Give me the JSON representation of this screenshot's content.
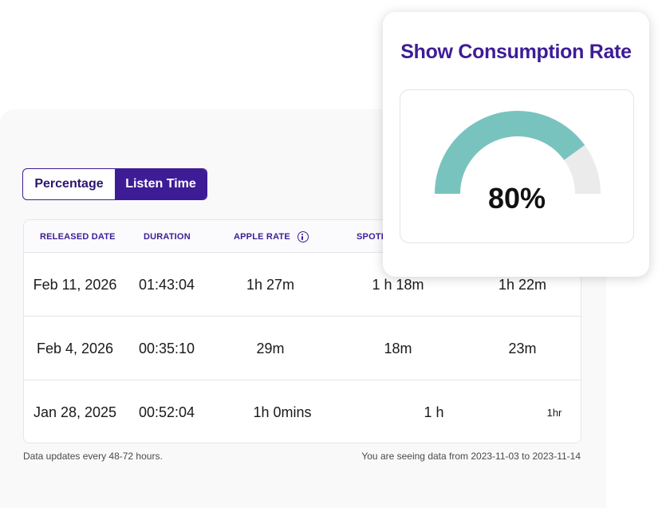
{
  "toggle": {
    "percentage_label": "Percentage",
    "listen_time_label": "Listen Time",
    "active": "listen_time"
  },
  "table": {
    "headers": {
      "released_date": "RELEASED DATE",
      "duration": "DURATION",
      "apple_rate": "APPLE RATE",
      "spotify_partial": "SPOTI"
    },
    "rows": [
      {
        "released_date": "Feb 11, 2026",
        "duration": "01:43:04",
        "apple_rate": "1h 27m",
        "spotify_rate": "1 h 18m",
        "col5": "1h 22m"
      },
      {
        "released_date": "Feb 4, 2026",
        "duration": "00:35:10",
        "apple_rate": "29m",
        "spotify_rate": "18m",
        "col5": "23m"
      },
      {
        "released_date": "Jan 28, 2025",
        "duration": "00:52:04",
        "apple_rate": "1h 0mins",
        "spotify_rate": "1 h",
        "col5": "1hr"
      }
    ]
  },
  "footer": {
    "update_note": "Data updates every 48-72 hours.",
    "range_note": "You are seeing data from 2023-11-03 to 2023-11-14"
  },
  "gauge": {
    "title": "Show Consumption Rate",
    "value": 80,
    "value_label": "80%",
    "fill_color": "#79c3bf",
    "track_color": "#ebebeb"
  },
  "colors": {
    "brand": "#3e1c96"
  }
}
